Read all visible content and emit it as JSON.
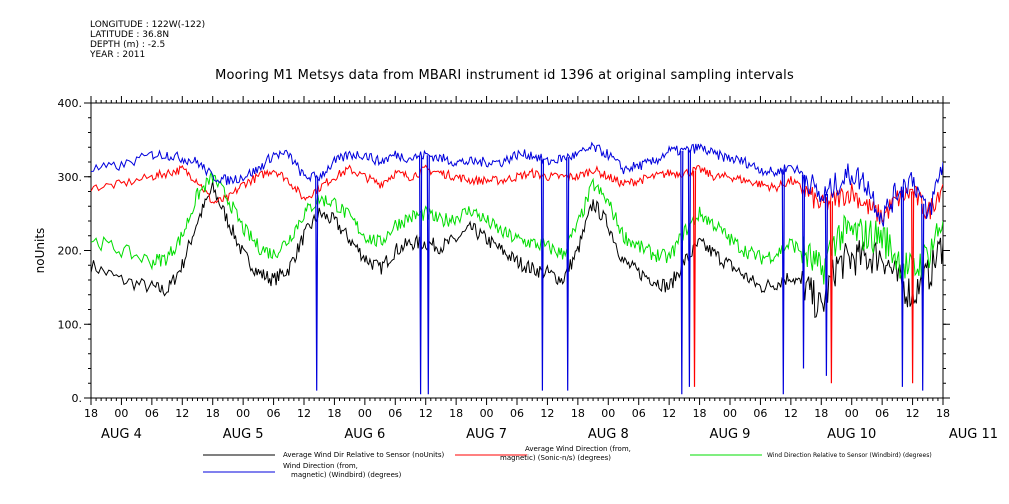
{
  "header": {
    "meta": [
      "LONGITUDE : 122W(-122)",
      "LATITUDE : 36.8N",
      "DEPTH (m) : -2.5",
      "YEAR : 2011"
    ],
    "title": "Mooring M1 Metsys data from MBARI instrument id 1396 at original sampling intervals"
  },
  "chart_data": {
    "type": "line",
    "title": "Mooring M1 Metsys data from MBARI instrument id 1396 at original sampling intervals",
    "ylabel": "noUnits",
    "xlabel": "",
    "ylim": [
      0,
      400
    ],
    "y_ticks": [
      0,
      100,
      200,
      300,
      400
    ],
    "y_tick_labels": [
      "0.",
      "100.",
      "200.",
      "300.",
      "400."
    ],
    "x_range_hours": [
      0,
      168
    ],
    "x_note": "hours from Aug 3 18:00",
    "x_tick_labels": [
      "18",
      "00",
      "06",
      "12",
      "18",
      "00",
      "06",
      "12",
      "18",
      "00",
      "06",
      "12",
      "18",
      "00",
      "06",
      "12",
      "18",
      "00",
      "06",
      "12",
      "18",
      "00",
      "06",
      "12",
      "18",
      "00",
      "06",
      "12",
      "18"
    ],
    "day_labels": [
      {
        "text": "AUG  4",
        "x": 6
      },
      {
        "text": "AUG  5",
        "x": 30
      },
      {
        "text": "AUG  6",
        "x": 54
      },
      {
        "text": "AUG  7",
        "x": 78
      },
      {
        "text": "AUG  8",
        "x": 102
      },
      {
        "text": "AUG  9",
        "x": 126
      },
      {
        "text": "AUG 10",
        "x": 150
      },
      {
        "text": "AUG 11",
        "x": 174
      }
    ],
    "grid": false,
    "series": [
      {
        "name": "Average Wind Dir Relative to Sensor (noUnits)",
        "color": "#000000",
        "x": [
          0,
          6,
          12,
          15,
          18,
          21,
          24,
          27,
          30,
          33,
          36,
          39,
          42,
          45,
          48,
          51,
          54,
          57,
          60,
          63,
          66,
          69,
          72,
          75,
          78,
          81,
          84,
          87,
          90,
          93,
          96,
          99,
          102,
          105,
          108,
          111,
          114,
          117,
          120,
          123,
          126,
          129,
          132,
          135,
          138,
          141,
          144,
          147,
          150,
          153,
          156,
          159,
          162,
          165,
          168
        ],
        "values": [
          180,
          160,
          150,
          145,
          180,
          240,
          285,
          240,
          195,
          170,
          160,
          175,
          220,
          250,
          240,
          215,
          190,
          175,
          200,
          210,
          210,
          205,
          215,
          230,
          215,
          200,
          185,
          175,
          170,
          160,
          200,
          265,
          235,
          185,
          170,
          160,
          150,
          185,
          210,
          195,
          180,
          165,
          150,
          155,
          165,
          150,
          120,
          180,
          190,
          190,
          195,
          160,
          140,
          165,
          210
        ]
      },
      {
        "name": "Average Wind Direction (from, magnetic) (Sonic-n/s) (degrees)",
        "color": "#ff0000",
        "x": [
          0,
          6,
          12,
          15,
          18,
          21,
          24,
          27,
          30,
          33,
          36,
          39,
          42,
          45,
          48,
          51,
          54,
          57,
          60,
          63,
          66,
          69,
          72,
          75,
          78,
          81,
          84,
          87,
          90,
          93,
          96,
          99,
          102,
          105,
          108,
          111,
          114,
          117,
          120,
          123,
          126,
          129,
          132,
          135,
          138,
          141,
          144,
          147,
          150,
          153,
          156,
          159,
          162,
          165,
          168
        ],
        "values": [
          285,
          290,
          300,
          305,
          310,
          295,
          265,
          270,
          290,
          300,
          310,
          295,
          270,
          285,
          300,
          310,
          300,
          290,
          305,
          300,
          310,
          305,
          300,
          295,
          295,
          295,
          300,
          305,
          300,
          300,
          300,
          310,
          300,
          290,
          295,
          300,
          305,
          305,
          310,
          300,
          300,
          295,
          290,
          285,
          295,
          280,
          260,
          270,
          280,
          260,
          245,
          270,
          280,
          250,
          290
        ]
      },
      {
        "name": "Wind Direction Relative to Sensor (Windbird) (degrees)",
        "color": "#00dd00",
        "x": [
          0,
          6,
          12,
          15,
          18,
          21,
          24,
          27,
          30,
          33,
          36,
          39,
          42,
          45,
          48,
          51,
          54,
          57,
          60,
          63,
          66,
          69,
          72,
          75,
          78,
          81,
          84,
          87,
          90,
          93,
          96,
          99,
          102,
          105,
          108,
          111,
          114,
          117,
          120,
          123,
          126,
          129,
          132,
          135,
          138,
          141,
          144,
          147,
          150,
          153,
          156,
          159,
          162,
          165,
          168
        ],
        "values": [
          215,
          200,
          185,
          190,
          220,
          275,
          300,
          270,
          230,
          205,
          195,
          215,
          250,
          270,
          265,
          245,
          220,
          210,
          235,
          245,
          250,
          240,
          245,
          255,
          240,
          225,
          215,
          210,
          205,
          195,
          235,
          290,
          265,
          220,
          205,
          195,
          190,
          225,
          250,
          235,
          215,
          200,
          190,
          195,
          210,
          195,
          170,
          220,
          225,
          220,
          220,
          190,
          170,
          195,
          240
        ]
      },
      {
        "name": "Wind Direction (from, magnetic) (Windbird) (degrees)",
        "color": "#0000dd",
        "x": [
          0,
          6,
          12,
          15,
          18,
          21,
          24,
          27,
          30,
          33,
          36,
          39,
          42,
          45,
          48,
          51,
          54,
          57,
          60,
          63,
          66,
          69,
          72,
          75,
          78,
          81,
          84,
          87,
          90,
          93,
          96,
          99,
          102,
          105,
          108,
          111,
          114,
          117,
          120,
          123,
          126,
          129,
          132,
          135,
          138,
          141,
          144,
          147,
          150,
          153,
          156,
          159,
          162,
          165,
          168
        ],
        "values": [
          310,
          315,
          330,
          330,
          325,
          320,
          300,
          295,
          300,
          310,
          330,
          330,
          300,
          300,
          320,
          330,
          330,
          320,
          330,
          325,
          330,
          325,
          320,
          320,
          320,
          320,
          330,
          330,
          320,
          325,
          330,
          340,
          330,
          310,
          315,
          320,
          335,
          335,
          340,
          330,
          325,
          320,
          310,
          305,
          315,
          300,
          270,
          290,
          305,
          290,
          245,
          280,
          300,
          245,
          320
        ]
      }
    ],
    "spikes": [
      {
        "series": 3,
        "x": 44.5,
        "value": 10
      },
      {
        "series": 3,
        "x": 65,
        "value": 5
      },
      {
        "series": 3,
        "x": 66.5,
        "value": 5
      },
      {
        "series": 3,
        "x": 89,
        "value": 10
      },
      {
        "series": 3,
        "x": 94,
        "value": 10
      },
      {
        "series": 3,
        "x": 116.5,
        "value": 5
      },
      {
        "series": 3,
        "x": 118,
        "value": 15
      },
      {
        "series": 1,
        "x": 119,
        "value": 15
      },
      {
        "series": 3,
        "x": 136.5,
        "value": 5
      },
      {
        "series": 3,
        "x": 140.5,
        "value": 40
      },
      {
        "series": 3,
        "x": 145,
        "value": 30
      },
      {
        "series": 1,
        "x": 146,
        "value": 20
      },
      {
        "series": 3,
        "x": 160,
        "value": 15
      },
      {
        "series": 1,
        "x": 162,
        "value": 20
      },
      {
        "series": 3,
        "x": 164,
        "value": 10
      }
    ],
    "legend": [
      {
        "label": "Average Wind Dir Relative to Sensor (noUnits)",
        "color": "#000000",
        "size": 7
      },
      {
        "label": "Average Wind Direction (from,\nmagnetic) (Sonic-n/s) (degrees)",
        "color": "#ff0000",
        "size": 7
      },
      {
        "label": "Wind Direction Relative to Sensor (Windbird) (degrees)",
        "color": "#00dd00",
        "size": 6
      },
      {
        "label": "Wind Direction (from,\nmagnetic) (Windbird) (degrees)",
        "color": "#0000dd",
        "size": 7
      }
    ]
  }
}
